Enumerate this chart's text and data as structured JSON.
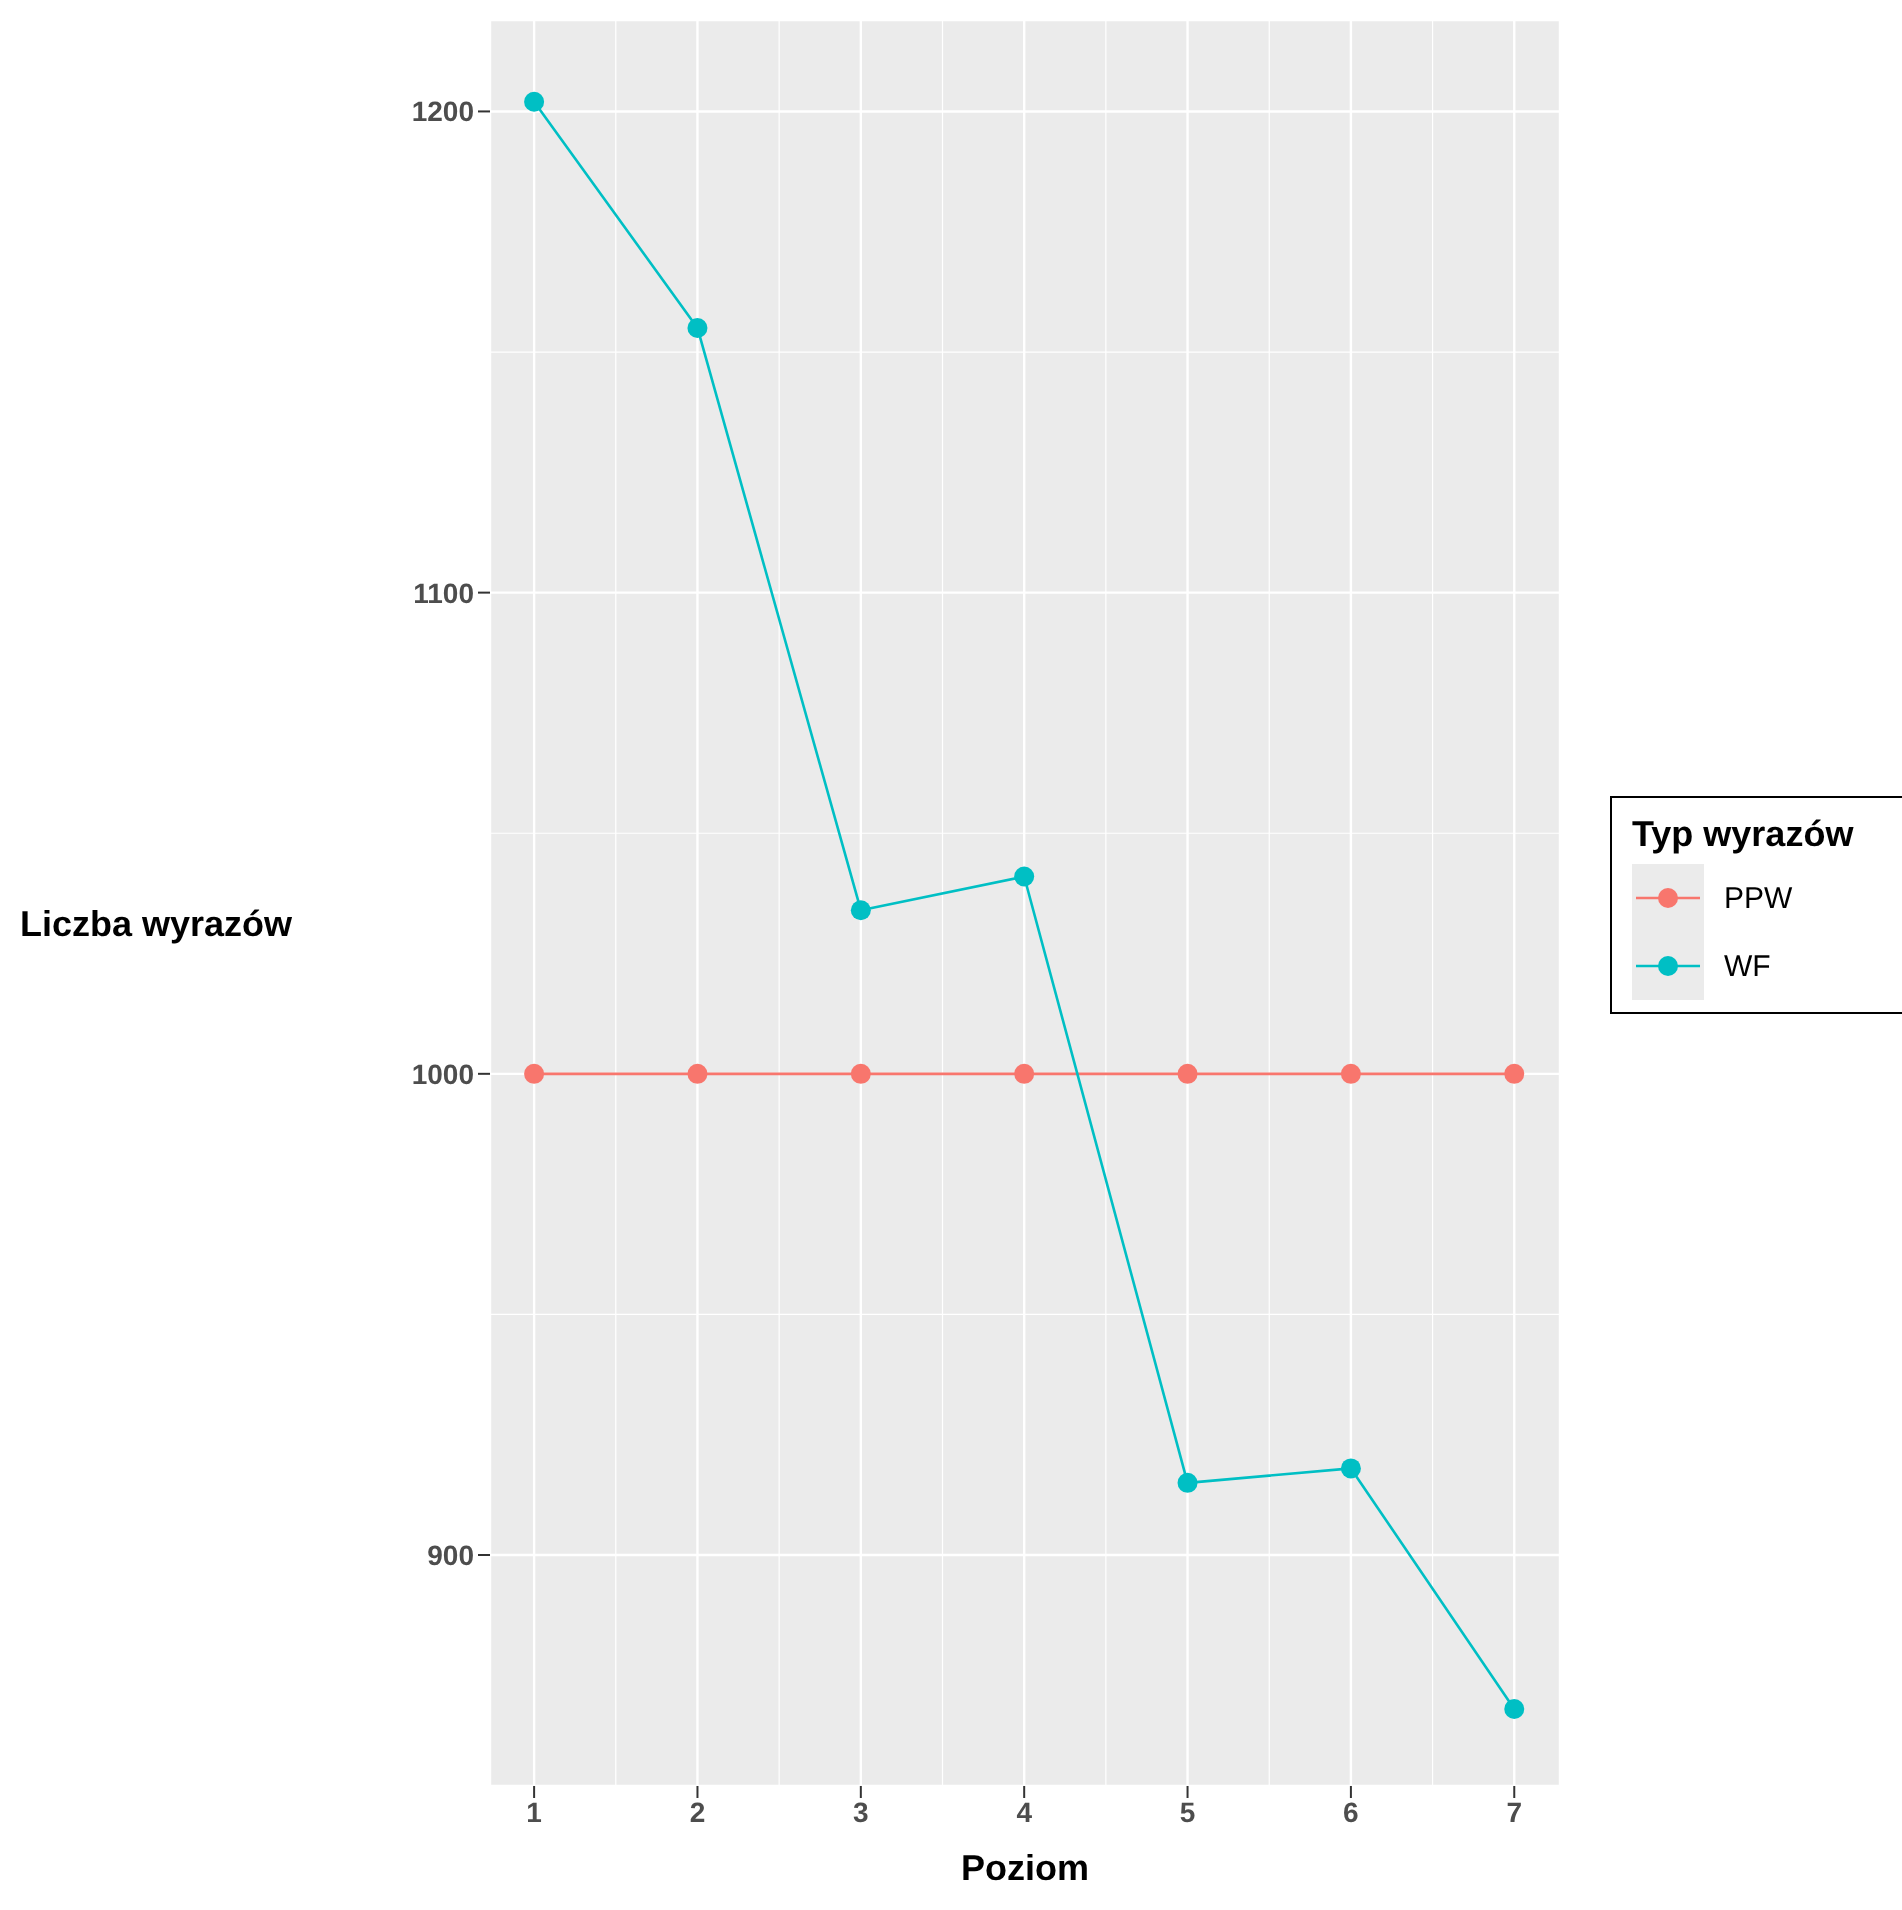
{
  "chart_data": {
    "type": "line",
    "xlabel": "Poziom",
    "ylabel": "Liczba wyrazów",
    "legend_title": "Typ wyrazów",
    "x": [
      1,
      2,
      3,
      4,
      5,
      6,
      7
    ],
    "series": [
      {
        "name": "PPW",
        "color": "#f8766d",
        "values": [
          1000,
          1000,
          1000,
          1000,
          1000,
          1000,
          1000
        ]
      },
      {
        "name": "WF",
        "color": "#00bfc4",
        "values": [
          1202,
          1155,
          1034,
          1041,
          915,
          918,
          868
        ]
      }
    ],
    "xlim": [
      0.73,
      7.28
    ],
    "xticks": [
      1,
      2,
      3,
      4,
      5,
      6,
      7
    ],
    "ylim": [
      852,
      1219
    ],
    "yticks": [
      900,
      1000,
      1100,
      1200
    ],
    "grid": true,
    "legend": "right",
    "marker": "circle",
    "line_style": "solid"
  }
}
